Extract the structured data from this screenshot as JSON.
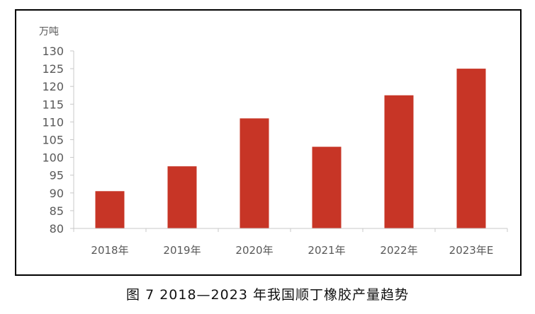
{
  "caption": "图 7  2018—2023 年我国顺丁橡胶产量趋势",
  "colors": {
    "bar": "#c73526",
    "axis": "#c8c8c8",
    "text": "#595959",
    "frame": "#000000"
  },
  "chart_data": {
    "type": "bar",
    "unit_label": "万吨",
    "categories": [
      "2018年",
      "2019年",
      "2020年",
      "2021年",
      "2022年",
      "2023年E"
    ],
    "values": [
      90.5,
      97.5,
      111,
      103,
      117.5,
      125
    ],
    "ylim": [
      80,
      130
    ],
    "yticks": [
      80,
      85,
      90,
      95,
      100,
      105,
      110,
      115,
      120,
      125,
      130
    ],
    "grid": false,
    "legend": "none"
  }
}
